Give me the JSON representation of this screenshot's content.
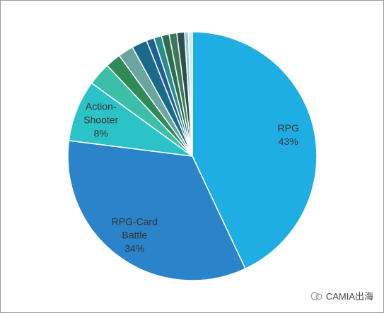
{
  "chart_data": {
    "type": "pie",
    "categories": [
      "RPG",
      "RPG-Card Battle",
      "Action-Shooter",
      null,
      null,
      null,
      null,
      null,
      null,
      null,
      null,
      null,
      null,
      null
    ],
    "values": [
      43,
      34,
      8,
      3,
      2,
      2,
      2,
      1,
      1,
      1,
      1,
      1,
      0.5,
      0.5
    ],
    "value_labels": [
      "43%",
      "34%",
      "8%",
      null,
      null,
      null,
      null,
      null,
      null,
      null,
      null,
      null,
      null,
      null
    ],
    "colors": [
      "#1faee3",
      "#2b84c9",
      "#2bc3c8",
      "#3cbfa8",
      "#2e8b57",
      "#6aa5a0",
      "#1a6b8a",
      "#1f5f99",
      "#2b8c8c",
      "#2d6e4e",
      "#3a7a5a",
      "#2f4f4f",
      "#8fd0d8",
      "#cfe9ee"
    ],
    "watermark": "CAMIA出海"
  }
}
